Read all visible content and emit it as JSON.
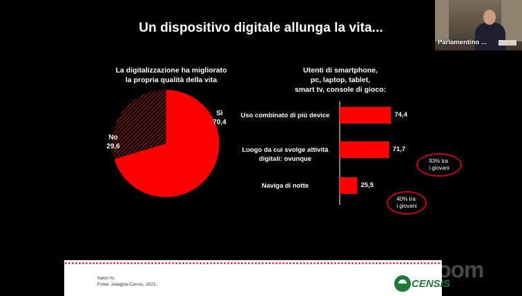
{
  "slide": {
    "title": "Un dispositivo digitale allunga la vita..."
  },
  "video": {
    "participant_name": "Parlamentino ..."
  },
  "chart_data": [
    {
      "type": "pie",
      "title": "La digitalizzazione ha migliorato la propria qualità della vita",
      "title_lines": [
        "La digitalizzazione ha migliorato",
        "la propria qualità della vita"
      ],
      "slices": [
        {
          "label": "Sì",
          "value": 70.4,
          "value_text": "70,4",
          "color": "#ff0000"
        },
        {
          "label": "No",
          "value": 29.6,
          "value_text": "29,6",
          "color": "#7a1414",
          "pattern": "hatched"
        }
      ]
    },
    {
      "type": "bar",
      "orientation": "horizontal",
      "title": "Utenti di smartphone, pc, laptop, tablet, smart tv, console di gioco:",
      "title_lines": [
        "Utenti di smartphone,",
        "pc, laptop, tablet,",
        "smart tv, console di gioco:"
      ],
      "categories": [
        [
          "Uso combinato di più device"
        ],
        [
          "Luogo da cui svolge attività",
          "digitali: ovunque"
        ],
        [
          "Naviga di notte"
        ]
      ],
      "values": [
        74.4,
        71.7,
        25.5
      ],
      "value_labels": [
        "74,4",
        "71,7",
        "25,5"
      ],
      "color": "#ff0000",
      "xlim": [
        0,
        100
      ],
      "annotations": [
        {
          "category_index": 1,
          "lines": [
            "93% tra",
            "i giovani"
          ]
        },
        {
          "category_index": 2,
          "lines": [
            "40% tra",
            "i giovani"
          ]
        }
      ]
    }
  ],
  "footer": {
    "note_lines": [
      "Valori %.",
      "Fonte: indagine Censis, 2021."
    ],
    "logo_text": "CENSIS"
  },
  "watermark": {
    "text": "zoom"
  }
}
